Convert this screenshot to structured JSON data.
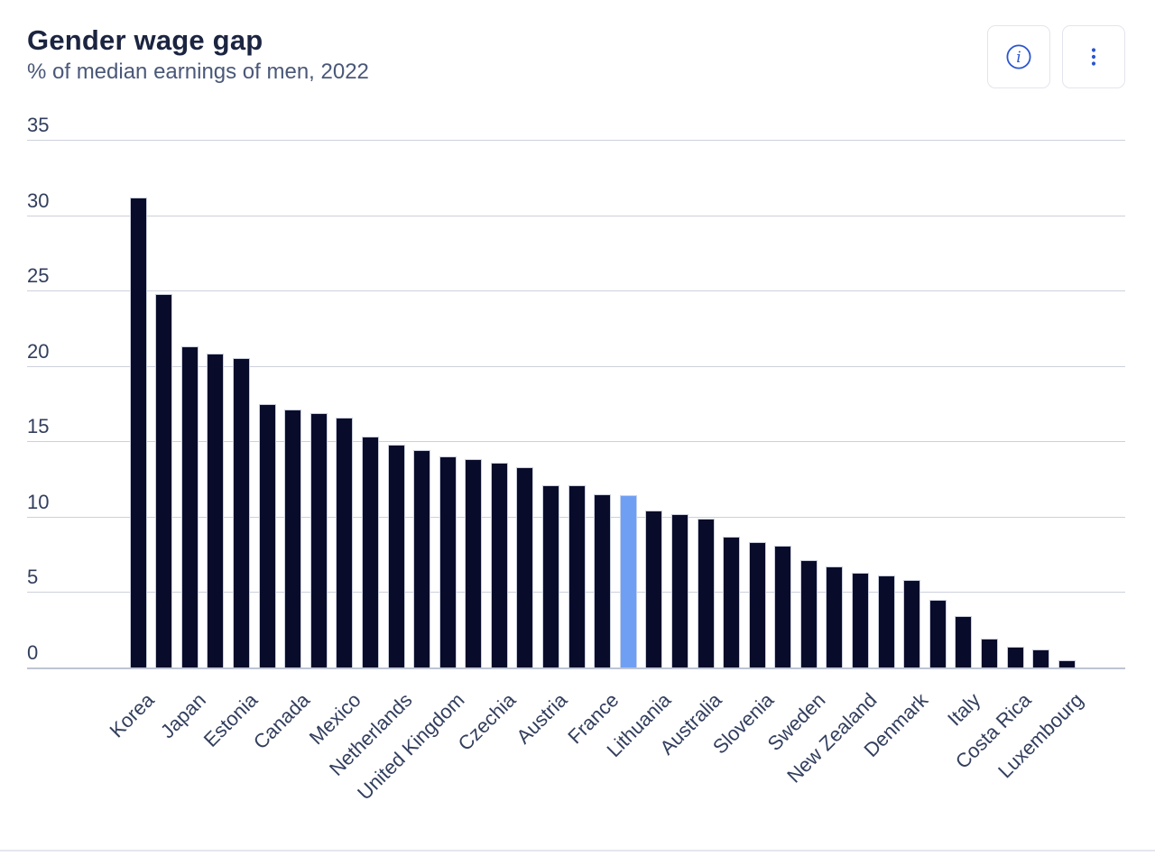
{
  "header": {
    "title": "Gender wage gap",
    "subtitle": "% of median earnings of men, 2022"
  },
  "toolbar": {
    "info_button_label": "Information",
    "menu_button_label": "More options"
  },
  "colors": {
    "accent_blue": "#2b55cf",
    "bar": "#080c2a",
    "bar_highlight": "#6f9ff3",
    "gridline": "#cdd1dc",
    "axis_line": "#bec4d2",
    "title_text": "#1b2440",
    "subtitle_text": "#4a5878",
    "tick_text": "#323e5d",
    "button_border": "#e2e5ec"
  },
  "chart_data": {
    "type": "bar",
    "title": "Gender wage gap",
    "subtitle": "% of median earnings of men, 2022",
    "year": "2022",
    "ylabel": "% of median earnings of men",
    "ylim": [
      0,
      35
    ],
    "yticks": [
      0,
      5,
      10,
      15,
      20,
      25,
      30,
      35
    ],
    "grid": true,
    "legend": "none",
    "x_label_style": "rotated 45 degrees, shown for every second bar only",
    "highlight_index": 19,
    "bars": [
      {
        "label": "Korea",
        "value": 31.2
      },
      {
        "label": "",
        "value": 24.8
      },
      {
        "label": "Japan",
        "value": 21.3
      },
      {
        "label": "",
        "value": 20.8
      },
      {
        "label": "Estonia",
        "value": 20.5
      },
      {
        "label": "",
        "value": 17.5
      },
      {
        "label": "Canada",
        "value": 17.1
      },
      {
        "label": "",
        "value": 16.9
      },
      {
        "label": "Mexico",
        "value": 16.6
      },
      {
        "label": "",
        "value": 15.3
      },
      {
        "label": "Netherlands",
        "value": 14.8
      },
      {
        "label": "",
        "value": 14.4
      },
      {
        "label": "United Kingdom",
        "value": 14.0
      },
      {
        "label": "",
        "value": 13.8
      },
      {
        "label": "Czechia",
        "value": 13.6
      },
      {
        "label": "",
        "value": 13.3
      },
      {
        "label": "Austria",
        "value": 12.1
      },
      {
        "label": "",
        "value": 12.1
      },
      {
        "label": "France",
        "value": 11.5
      },
      {
        "label": "",
        "value": 11.4,
        "highlight": true
      },
      {
        "label": "Lithuania",
        "value": 10.4
      },
      {
        "label": "",
        "value": 10.2
      },
      {
        "label": "Australia",
        "value": 9.9
      },
      {
        "label": "",
        "value": 8.7
      },
      {
        "label": "Slovenia",
        "value": 8.3
      },
      {
        "label": "",
        "value": 8.1
      },
      {
        "label": "Sweden",
        "value": 7.1
      },
      {
        "label": "",
        "value": 6.7
      },
      {
        "label": "New Zealand",
        "value": 6.3
      },
      {
        "label": "",
        "value": 6.1
      },
      {
        "label": "Denmark",
        "value": 5.8
      },
      {
        "label": "",
        "value": 4.5
      },
      {
        "label": "Italy",
        "value": 3.4
      },
      {
        "label": "",
        "value": 1.9
      },
      {
        "label": "Costa Rica",
        "value": 1.4
      },
      {
        "label": "",
        "value": 1.2
      },
      {
        "label": "Luxembourg",
        "value": 0.5
      }
    ]
  }
}
